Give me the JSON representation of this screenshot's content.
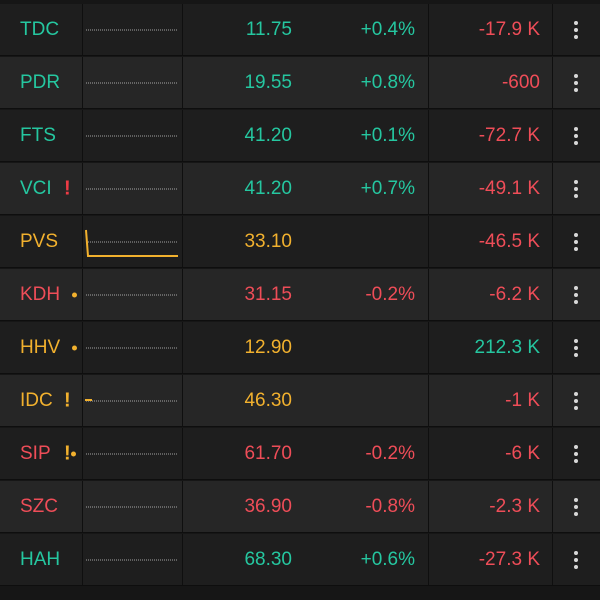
{
  "colors": {
    "up": "#25c7a0",
    "down": "#ef4d58",
    "ref": "#f2b12e",
    "flag": "#ef3b45",
    "row_even": "#1e1e1e",
    "row_odd": "#262626",
    "sparkline": "#d0d0d0"
  },
  "rows": [
    {
      "symbol": "TDC",
      "price": "11.75",
      "change": "+0.4%",
      "volume": "-17.9 K",
      "symbol_color": "up",
      "price_color": "up",
      "change_color": "up",
      "volume_color": "down",
      "flag": "",
      "dot": false,
      "menu_icon": "more-vertical-icon"
    },
    {
      "symbol": "PDR",
      "price": "19.55",
      "change": "+0.8%",
      "volume": "-600",
      "symbol_color": "up",
      "price_color": "up",
      "change_color": "up",
      "volume_color": "down",
      "flag": "",
      "dot": false,
      "menu_icon": "more-vertical-icon"
    },
    {
      "symbol": "FTS",
      "price": "41.20",
      "change": "+0.1%",
      "volume": "-72.7 K",
      "symbol_color": "up",
      "price_color": "up",
      "change_color": "up",
      "volume_color": "down",
      "flag": "",
      "dot": false,
      "menu_icon": "more-vertical-icon"
    },
    {
      "symbol": "VCI",
      "price": "41.20",
      "change": "+0.7%",
      "volume": "-49.1 K",
      "symbol_color": "up",
      "price_color": "up",
      "change_color": "up",
      "volume_color": "down",
      "flag": "!",
      "flag_color": "flag",
      "dot": false,
      "menu_icon": "more-vertical-icon"
    },
    {
      "symbol": "PVS",
      "price": "33.10",
      "change": "",
      "volume": "-46.5 K",
      "symbol_color": "ref",
      "price_color": "ref",
      "change_color": "ref",
      "volume_color": "down",
      "flag": "",
      "dot": false,
      "menu_icon": "more-vertical-icon"
    },
    {
      "symbol": "KDH",
      "price": "31.15",
      "change": "-0.2%",
      "volume": "-6.2 K",
      "symbol_color": "down",
      "price_color": "down",
      "change_color": "down",
      "volume_color": "down",
      "flag": "",
      "dot": true,
      "dot_color": "ref",
      "menu_icon": "more-vertical-icon"
    },
    {
      "symbol": "HHV",
      "price": "12.90",
      "change": "",
      "volume": "212.3 K",
      "symbol_color": "ref",
      "price_color": "ref",
      "change_color": "ref",
      "volume_color": "up",
      "flag": "",
      "dot": true,
      "dot_color": "ref",
      "menu_icon": "more-vertical-icon"
    },
    {
      "symbol": "IDC",
      "price": "46.30",
      "change": "",
      "volume": "-1 K",
      "symbol_color": "ref",
      "price_color": "ref",
      "change_color": "ref",
      "volume_color": "down",
      "flag": "!",
      "flag_color": "ref",
      "dot": false,
      "menu_icon": "more-vertical-icon"
    },
    {
      "symbol": "SIP",
      "price": "61.70",
      "change": "-0.2%",
      "volume": "-6 K",
      "symbol_color": "down",
      "price_color": "down",
      "change_color": "down",
      "volume_color": "down",
      "flag": "!",
      "flag_color": "ref",
      "dot": true,
      "dot_color": "ref",
      "menu_icon": "more-vertical-icon"
    },
    {
      "symbol": "SZC",
      "price": "36.90",
      "change": "-0.8%",
      "volume": "-2.3 K",
      "symbol_color": "down",
      "price_color": "down",
      "change_color": "down",
      "volume_color": "down",
      "flag": "",
      "dot": false,
      "menu_icon": "more-vertical-icon"
    },
    {
      "symbol": "HAH",
      "price": "68.30",
      "change": "+0.6%",
      "volume": "-27.3 K",
      "symbol_color": "up",
      "price_color": "up",
      "change_color": "up",
      "volume_color": "down",
      "flag": "",
      "dot": false,
      "menu_icon": "more-vertical-icon"
    }
  ]
}
